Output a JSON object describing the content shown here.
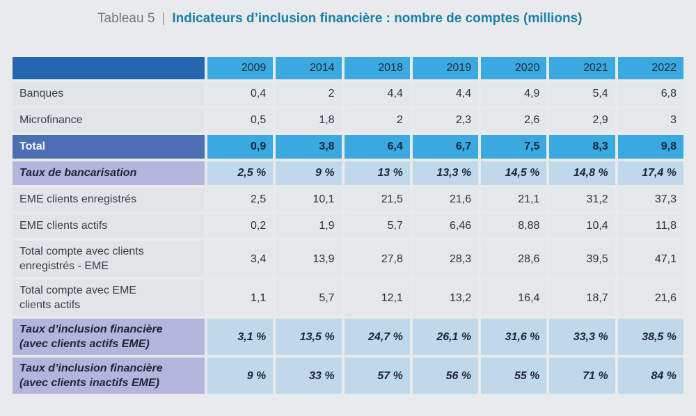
{
  "title": {
    "label": "Tableau 5",
    "separator": "|",
    "text": "Indicateurs d’inclusion financière : nombre de comptes (millions)"
  },
  "table": {
    "years": [
      "2009",
      "2014",
      "2018",
      "2019",
      "2020",
      "2021",
      "2022"
    ],
    "rows": [
      {
        "label": "Banques",
        "values": [
          "0,4",
          "2",
          "4,4",
          "4,4",
          "4,9",
          "5,4",
          "6,8"
        ]
      },
      {
        "label": "Microfinance",
        "values": [
          "0,5",
          "1,8",
          "2",
          "2,3",
          "2,6",
          "2,9",
          "3"
        ]
      },
      {
        "label": "Total",
        "values": [
          "0,9",
          "3,8",
          "6,4",
          "6,7",
          "7,5",
          "8,3",
          "9,8"
        ]
      },
      {
        "label": "Taux de bancarisation",
        "values": [
          "2,5 %",
          "9 %",
          "13 %",
          "13,3 %",
          "14,5 %",
          "14,8 %",
          "17,4 %"
        ]
      },
      {
        "label": "EME clients enregistrés",
        "values": [
          "2,5",
          "10,1",
          "21,5",
          "21,6",
          "21,1",
          "31,2",
          "37,3"
        ]
      },
      {
        "label": "EME clients actifs",
        "values": [
          "0,2",
          "1,9",
          "5,7",
          "6,46",
          "8,88",
          "10,4",
          "11,8"
        ]
      },
      {
        "label_line1": "Total compte avec clients",
        "label_line2": "enregistrés - EME",
        "values": [
          "3,4",
          "13,9",
          "27,8",
          "28,3",
          "28,6",
          "39,5",
          "47,1"
        ]
      },
      {
        "label_line1": "Total compte avec EME",
        "label_line2": "clients actifs",
        "values": [
          "1,1",
          "5,7",
          "12,1",
          "13,2",
          "16,4",
          "18,7",
          "21,6"
        ]
      },
      {
        "label_line1": "Taux d’inclusion financière",
        "label_line2": "(avec clients actifs EME)",
        "values": [
          "3,1 %",
          "13,5 %",
          "24,7 %",
          "26,1 %",
          "31,6 %",
          "33,3 %",
          "38,5 %"
        ]
      },
      {
        "label_line1": "Taux d’inclusion financière",
        "label_line2": "(avec clients inactifs EME)",
        "values": [
          "9 %",
          "33 %",
          "57 %",
          "56 %",
          "55 %",
          "71 %",
          "84 %"
        ]
      }
    ]
  }
}
